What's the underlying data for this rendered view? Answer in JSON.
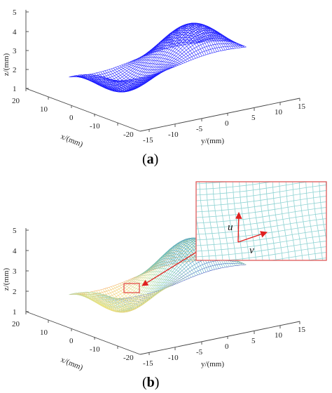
{
  "panels": [
    {
      "id": "a",
      "caption_open": "(",
      "caption_letter": "a",
      "caption_close": ")",
      "z_ticks": [
        "1",
        "2",
        "3",
        "4",
        "5"
      ],
      "x_ticks": [
        "20",
        "10",
        "0",
        "-10",
        "-20"
      ],
      "y_ticks": [
        "-15",
        "-10",
        "-5",
        "0",
        "5",
        "10",
        "15"
      ],
      "z_label": "z/(mm)",
      "x_label": "x/(mm)",
      "y_label": "y/(mm)",
      "surface_color": "#1a1aff"
    },
    {
      "id": "b",
      "caption_open": "(",
      "caption_letter": "b",
      "caption_close": ")",
      "z_ticks": [
        "1",
        "2",
        "3",
        "4",
        "5"
      ],
      "x_ticks": [
        "20",
        "10",
        "0",
        "-10",
        "-20"
      ],
      "y_ticks": [
        "-15",
        "-10",
        "-5",
        "0",
        "5",
        "10",
        "15"
      ],
      "z_label": "z/(mm)",
      "x_label": "x/(mm)",
      "y_label": "y/(mm)",
      "colormap": [
        "#3b4cc0",
        "#4fb3c4",
        "#9fd8a8",
        "#f2e37a",
        "#f6a35a"
      ]
    }
  ],
  "inset": {
    "u_label": "u",
    "v_label": "v",
    "border_color": "#e06060",
    "mesh_color": "#8fd3d3",
    "arrow_color": "#e02020"
  }
}
